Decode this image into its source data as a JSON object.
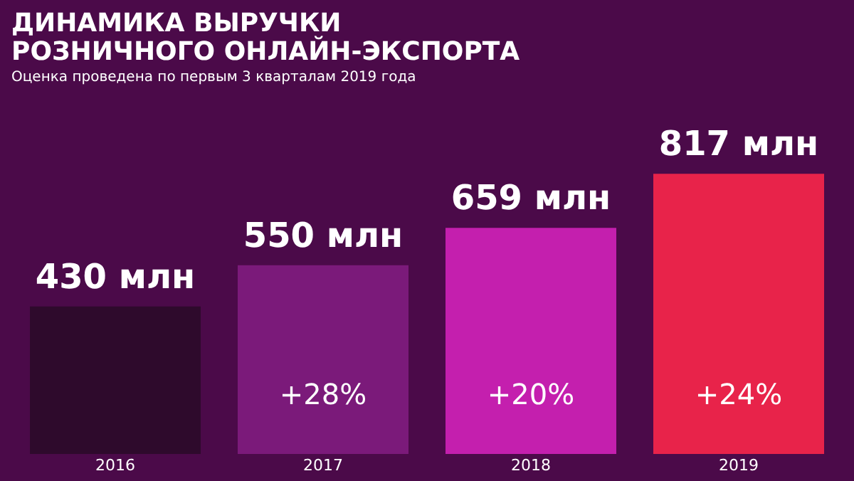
{
  "chart_data": {
    "type": "bar",
    "title": "ДИНАМИКА ВЫРУЧКИ РОЗНИЧНОГО ОНЛАЙН-ЭКСПОРТА",
    "subtitle": "Оценка проведена по первым 3 кварталам 2019 года",
    "categories": [
      "2016",
      "2017",
      "2018",
      "2019"
    ],
    "values": [
      430,
      550,
      659,
      817
    ],
    "colors": [
      "#2e0a2c",
      "#7b1a7a",
      "#c41fae",
      "#e8234a"
    ],
    "value_labels": [
      "430 млн",
      "550 млн",
      "659 млн",
      "817 млн"
    ],
    "annotations": [
      "+28%",
      "+20%",
      "+24%"
    ],
    "grid": false
  }
}
